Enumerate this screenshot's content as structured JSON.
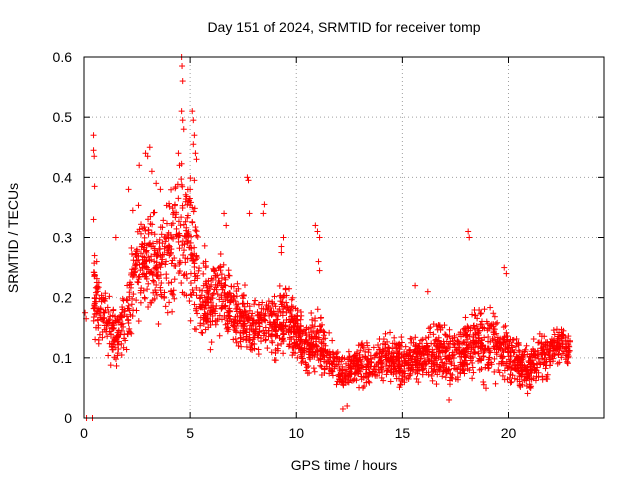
{
  "chart_data": {
    "type": "scatter",
    "title": "Day 151 of 2024, SRMTID for receiver tomp",
    "xlabel": "GPS time / hours",
    "ylabel": "SRMTID / TECUs",
    "xlim": [
      0,
      24.5
    ],
    "ylim": [
      0,
      0.6
    ],
    "x_ticks": [
      0,
      5,
      10,
      15,
      20
    ],
    "y_ticks": [
      0,
      0.1,
      0.2,
      0.3,
      0.4,
      0.5,
      0.6
    ],
    "x_tick_labels": [
      "0",
      "5",
      "10",
      "15",
      "20"
    ],
    "y_tick_labels": [
      "0",
      "0.1",
      "0.2",
      "0.3",
      "0.4",
      "0.5",
      "0.6"
    ],
    "grid": true,
    "marker": "+",
    "color": "#ff0000",
    "trend": {
      "x": [
        0,
        0.5,
        1,
        1.5,
        2,
        2.5,
        3,
        3.5,
        4,
        4.5,
        5,
        5.5,
        6,
        6.5,
        7,
        7.5,
        8,
        8.5,
        9,
        9.5,
        10,
        10.5,
        11,
        11.5,
        12,
        12.5,
        13,
        13.5,
        14,
        14.5,
        15,
        15.5,
        16,
        16.5,
        17,
        17.5,
        18,
        18.5,
        19,
        19.5,
        20,
        20.5,
        21,
        21.5,
        22,
        22.5,
        22.9
      ],
      "y": [
        0.17,
        0.2,
        0.17,
        0.13,
        0.16,
        0.26,
        0.28,
        0.25,
        0.27,
        0.3,
        0.3,
        0.2,
        0.19,
        0.21,
        0.18,
        0.16,
        0.15,
        0.16,
        0.15,
        0.17,
        0.14,
        0.12,
        0.13,
        0.1,
        0.08,
        0.08,
        0.09,
        0.09,
        0.1,
        0.1,
        0.09,
        0.1,
        0.1,
        0.11,
        0.1,
        0.1,
        0.11,
        0.13,
        0.12,
        0.12,
        0.1,
        0.09,
        0.08,
        0.1,
        0.11,
        0.13,
        0.11
      ],
      "spread": [
        0.02,
        0.07,
        0.06,
        0.05,
        0.06,
        0.09,
        0.1,
        0.1,
        0.1,
        0.12,
        0.13,
        0.08,
        0.07,
        0.08,
        0.06,
        0.06,
        0.05,
        0.05,
        0.06,
        0.06,
        0.05,
        0.05,
        0.05,
        0.04,
        0.03,
        0.03,
        0.04,
        0.04,
        0.04,
        0.04,
        0.04,
        0.04,
        0.04,
        0.05,
        0.05,
        0.05,
        0.05,
        0.06,
        0.06,
        0.06,
        0.05,
        0.04,
        0.04,
        0.04,
        0.04,
        0.03,
        0.03
      ]
    },
    "series": [
      {
        "name": "SRMTID",
        "points": [
          [
            0.05,
            0.175
          ],
          [
            0.1,
            0.165
          ],
          [
            0.12,
            0.0
          ],
          [
            0.4,
            0.0
          ],
          [
            0.45,
            0.47
          ],
          [
            0.45,
            0.445
          ],
          [
            0.48,
            0.435
          ],
          [
            0.5,
            0.385
          ],
          [
            0.45,
            0.33
          ],
          [
            0.5,
            0.27
          ],
          [
            0.6,
            0.26
          ],
          [
            0.7,
            0.225
          ],
          [
            1.5,
            0.3
          ],
          [
            2.1,
            0.38
          ],
          [
            2.3,
            0.345
          ],
          [
            2.6,
            0.42
          ],
          [
            2.9,
            0.44
          ],
          [
            3.0,
            0.435
          ],
          [
            3.1,
            0.45
          ],
          [
            3.2,
            0.41
          ],
          [
            3.4,
            0.39
          ],
          [
            3.6,
            0.38
          ],
          [
            4.45,
            0.44
          ],
          [
            4.5,
            0.42
          ],
          [
            4.6,
            0.6
          ],
          [
            4.62,
            0.585
          ],
          [
            4.65,
            0.56
          ],
          [
            4.6,
            0.51
          ],
          [
            4.65,
            0.495
          ],
          [
            4.7,
            0.48
          ],
          [
            5.1,
            0.51
          ],
          [
            5.15,
            0.495
          ],
          [
            5.2,
            0.47
          ],
          [
            5.15,
            0.455
          ],
          [
            5.25,
            0.44
          ],
          [
            5.3,
            0.43
          ],
          [
            5.2,
            0.395
          ],
          [
            5.0,
            0.38
          ],
          [
            5.1,
            0.35
          ],
          [
            6.6,
            0.34
          ],
          [
            6.7,
            0.32
          ],
          [
            7.7,
            0.4
          ],
          [
            7.75,
            0.395
          ],
          [
            7.8,
            0.34
          ],
          [
            8.5,
            0.355
          ],
          [
            8.45,
            0.34
          ],
          [
            9.3,
            0.285
          ],
          [
            9.4,
            0.3
          ],
          [
            9.3,
            0.275
          ],
          [
            10.9,
            0.32
          ],
          [
            11.0,
            0.31
          ],
          [
            11.1,
            0.3
          ],
          [
            11.05,
            0.26
          ],
          [
            11.1,
            0.245
          ],
          [
            12.2,
            0.015
          ],
          [
            12.4,
            0.02
          ],
          [
            18.1,
            0.31
          ],
          [
            18.15,
            0.3
          ],
          [
            19.8,
            0.25
          ],
          [
            19.9,
            0.24
          ],
          [
            17.2,
            0.03
          ],
          [
            15.6,
            0.22
          ],
          [
            16.2,
            0.21
          ]
        ]
      }
    ]
  }
}
